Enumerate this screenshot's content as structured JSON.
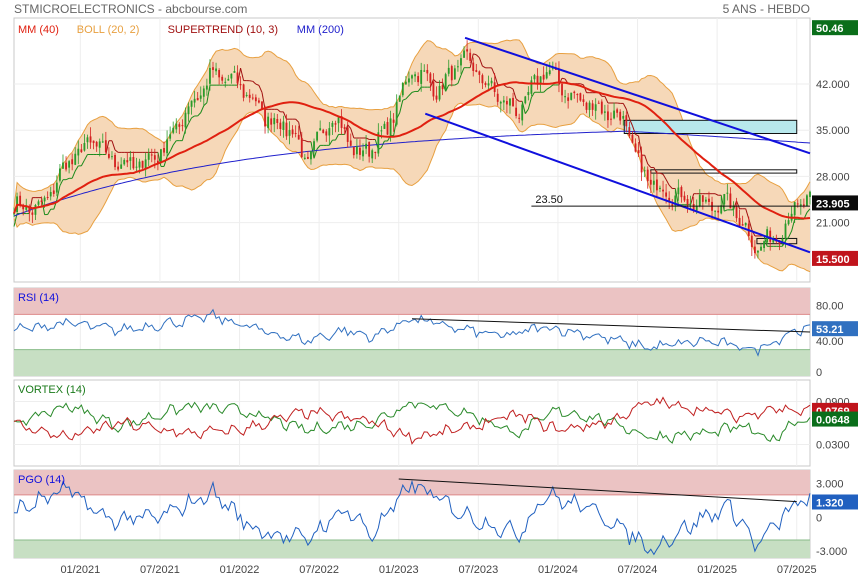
{
  "header": {
    "title": "STMICROELECTRONICS - abcbourse.com",
    "period": "5 ANS - HEBDO"
  },
  "colors": {
    "bull": "#2a9a2a",
    "bear": "#d42020",
    "mm40": "#e02010",
    "mm200": "#2020cc",
    "boll": "#e8a040",
    "bollFill": "#f6d8b8",
    "supertrend": "#1a8a1a",
    "supertrendDown": "#a01010",
    "channel": "#1010dd",
    "rsi": "#3070c0",
    "pgo": "#2060c0",
    "vortexPlus": "#2a8a2a",
    "vortexMinus": "#c02020",
    "zoneHigh": "#ebc3c3",
    "zoneLow": "#c7dfc3",
    "rectBlue": "#b8e8ec"
  },
  "chart_data": [
    {
      "type": "candlestick",
      "name": "price",
      "legend": [
        {
          "label": "MM (40)",
          "color": "#e02010"
        },
        {
          "label": "BOLL (20, 2)",
          "color": "#e8a040"
        },
        {
          "label": "SUPERTREND (10, 3)",
          "color": "#a01010"
        },
        {
          "label": "MM (200)",
          "color": "#2020cc"
        }
      ],
      "ylim": [
        12,
        52
      ],
      "yticks": [
        42.0,
        35.0,
        28.0,
        21.0
      ],
      "ytick_labels": [
        "42.000",
        "35.000",
        "28.000",
        "21.000"
      ],
      "x_tick_labels": [
        "01/2021",
        "07/2021",
        "01/2022",
        "07/2022",
        "01/2023",
        "07/2023",
        "01/2024",
        "07/2024",
        "01/2025",
        "07/2025"
      ],
      "x_start": "2020-08",
      "x_end": "2025-08",
      "close_anchors": [
        {
          "date": "2020-08",
          "value": 23.5
        },
        {
          "date": "2020-10",
          "value": 23.0
        },
        {
          "date": "2020-12",
          "value": 30.0
        },
        {
          "date": "2021-02",
          "value": 33.5
        },
        {
          "date": "2021-03",
          "value": 31.0
        },
        {
          "date": "2021-05",
          "value": 29.5
        },
        {
          "date": "2021-07",
          "value": 31.5
        },
        {
          "date": "2021-09",
          "value": 38.0
        },
        {
          "date": "2021-11",
          "value": 43.5
        },
        {
          "date": "2022-01",
          "value": 42.0
        },
        {
          "date": "2022-03",
          "value": 37.0
        },
        {
          "date": "2022-05",
          "value": 35.0
        },
        {
          "date": "2022-06",
          "value": 30.0
        },
        {
          "date": "2022-08",
          "value": 37.5
        },
        {
          "date": "2022-10",
          "value": 31.0
        },
        {
          "date": "2022-12",
          "value": 34.5
        },
        {
          "date": "2023-02",
          "value": 44.5
        },
        {
          "date": "2023-04",
          "value": 41.0
        },
        {
          "date": "2023-06",
          "value": 46.0
        },
        {
          "date": "2023-08",
          "value": 41.0
        },
        {
          "date": "2023-10",
          "value": 37.5
        },
        {
          "date": "2023-12",
          "value": 44.5
        },
        {
          "date": "2024-02",
          "value": 40.0
        },
        {
          "date": "2024-04",
          "value": 38.5
        },
        {
          "date": "2024-06",
          "value": 36.5
        },
        {
          "date": "2024-07",
          "value": 30.0
        },
        {
          "date": "2024-08",
          "value": 27.0
        },
        {
          "date": "2024-10",
          "value": 25.0
        },
        {
          "date": "2024-12",
          "value": 23.5
        },
        {
          "date": "2025-02",
          "value": 24.0
        },
        {
          "date": "2025-04",
          "value": 17.0
        },
        {
          "date": "2025-06",
          "value": 20.0
        },
        {
          "date": "2025-07",
          "value": 23.9
        }
      ],
      "channel_lines": [
        {
          "from": {
            "date": "2023-06",
            "value": 49.0
          },
          "to": {
            "date": "2025-08",
            "value": 31.5
          }
        },
        {
          "from": {
            "date": "2023-03",
            "value": 37.5
          },
          "to": {
            "date": "2025-08",
            "value": 16.5
          }
        }
      ],
      "zones": [
        {
          "from": "2024-06",
          "to": "2025-07",
          "low": 34.5,
          "high": 36.5,
          "fill": "#b8e8ec"
        },
        {
          "from": "2024-08",
          "to": "2025-07",
          "low": 28.5,
          "high": 29.0,
          "fill": "none"
        },
        {
          "from": "2025-04",
          "to": "2025-07",
          "low": 17.8,
          "high": 18.6,
          "fill": "none"
        }
      ],
      "level_label": {
        "text": "23.50",
        "value": 23.5,
        "from": "2023-11",
        "to": "2025-08"
      },
      "price_badges": [
        {
          "text": "50.46",
          "value": 50.46,
          "color": "#0a6e1a"
        },
        {
          "text": "23.905",
          "value": 23.905,
          "color": "#0a0a0a"
        },
        {
          "text": "15.500",
          "value": 15.5,
          "color": "#c0141c"
        }
      ]
    },
    {
      "type": "line",
      "name": "RSI (14)",
      "ylim": [
        0,
        100
      ],
      "yticks": [
        80,
        40,
        0
      ],
      "ytick_labels": [
        "80.00",
        "40.00",
        "0"
      ],
      "zones": [
        {
          "low": 70,
          "high": 100,
          "kind": "high"
        },
        {
          "low": 0,
          "high": 30,
          "kind": "low"
        }
      ],
      "trend_line": {
        "from": {
          "date": "2023-02",
          "value": 65
        },
        "to": {
          "date": "2025-08",
          "value": 50
        }
      },
      "anchors": [
        {
          "date": "2020-08",
          "value": 52
        },
        {
          "date": "2020-12",
          "value": 60
        },
        {
          "date": "2021-04",
          "value": 52
        },
        {
          "date": "2021-09",
          "value": 63
        },
        {
          "date": "2021-11",
          "value": 68
        },
        {
          "date": "2022-03",
          "value": 50
        },
        {
          "date": "2022-06",
          "value": 40
        },
        {
          "date": "2022-09",
          "value": 52
        },
        {
          "date": "2022-11",
          "value": 44
        },
        {
          "date": "2023-02",
          "value": 66
        },
        {
          "date": "2023-05",
          "value": 55
        },
        {
          "date": "2023-09",
          "value": 45
        },
        {
          "date": "2023-12",
          "value": 56
        },
        {
          "date": "2024-04",
          "value": 45
        },
        {
          "date": "2024-08",
          "value": 32
        },
        {
          "date": "2024-12",
          "value": 40
        },
        {
          "date": "2025-04",
          "value": 30
        },
        {
          "date": "2025-07",
          "value": 53
        }
      ],
      "badge": {
        "text": "53.21",
        "value": 53.21,
        "color": "#3070c0"
      }
    },
    {
      "type": "line",
      "name": "VORTEX (14)",
      "ytick_labels": [
        "0.0900",
        "0.0769",
        "0.0648",
        "0.0300"
      ],
      "yticks": [
        0.09,
        0.03
      ],
      "ylim": [
        0.0,
        0.12
      ],
      "series": [
        {
          "name": "VI+",
          "color": "#2a8a2a",
          "anchors": [
            {
              "date": "2020-08",
              "value": 0.058
            },
            {
              "date": "2020-12",
              "value": 0.085
            },
            {
              "date": "2021-04",
              "value": 0.055
            },
            {
              "date": "2021-09",
              "value": 0.083
            },
            {
              "date": "2022-01",
              "value": 0.078
            },
            {
              "date": "2022-06",
              "value": 0.05
            },
            {
              "date": "2022-11",
              "value": 0.06
            },
            {
              "date": "2023-02",
              "value": 0.09
            },
            {
              "date": "2023-06",
              "value": 0.075
            },
            {
              "date": "2023-10",
              "value": 0.045
            },
            {
              "date": "2024-01",
              "value": 0.078
            },
            {
              "date": "2024-05",
              "value": 0.062
            },
            {
              "date": "2024-08",
              "value": 0.04
            },
            {
              "date": "2024-12",
              "value": 0.045
            },
            {
              "date": "2025-03",
              "value": 0.055
            },
            {
              "date": "2025-05",
              "value": 0.035
            },
            {
              "date": "2025-07",
              "value": 0.0648
            }
          ]
        },
        {
          "name": "VI-",
          "color": "#c02020",
          "anchors": [
            {
              "date": "2020-08",
              "value": 0.058
            },
            {
              "date": "2020-12",
              "value": 0.04
            },
            {
              "date": "2021-04",
              "value": 0.06
            },
            {
              "date": "2021-09",
              "value": 0.045
            },
            {
              "date": "2022-01",
              "value": 0.05
            },
            {
              "date": "2022-06",
              "value": 0.075
            },
            {
              "date": "2022-11",
              "value": 0.062
            },
            {
              "date": "2023-02",
              "value": 0.04
            },
            {
              "date": "2023-06",
              "value": 0.052
            },
            {
              "date": "2023-10",
              "value": 0.072
            },
            {
              "date": "2024-01",
              "value": 0.05
            },
            {
              "date": "2024-05",
              "value": 0.062
            },
            {
              "date": "2024-08",
              "value": 0.09
            },
            {
              "date": "2024-12",
              "value": 0.078
            },
            {
              "date": "2025-03",
              "value": 0.068
            },
            {
              "date": "2025-05",
              "value": 0.082
            },
            {
              "date": "2025-07",
              "value": 0.0769
            }
          ]
        }
      ],
      "badges": [
        {
          "text": "0.0769",
          "value": 0.0769,
          "color": "#c0141c"
        },
        {
          "text": "0.0648",
          "value": 0.0648,
          "color": "#0a6e1a"
        }
      ]
    },
    {
      "type": "line",
      "name": "PGO (14)",
      "ylim": [
        -3.6,
        4.2
      ],
      "yticks": [
        3.0,
        0,
        -3.0
      ],
      "ytick_labels": [
        "3.000",
        "0",
        "-3.000"
      ],
      "zones": [
        {
          "low": 2.0,
          "high": 4.2,
          "kind": "high"
        },
        {
          "low": -3.6,
          "high": -2.0,
          "kind": "low"
        }
      ],
      "trend_line": {
        "from": {
          "date": "2023-01",
          "value": 3.4
        },
        "to": {
          "date": "2025-07",
          "value": 1.4
        }
      },
      "anchors": [
        {
          "date": "2020-08",
          "value": 0.5
        },
        {
          "date": "2020-12",
          "value": 2.5
        },
        {
          "date": "2021-03",
          "value": -0.2
        },
        {
          "date": "2021-07",
          "value": 0.0
        },
        {
          "date": "2021-11",
          "value": 2.2
        },
        {
          "date": "2022-02",
          "value": -1.0
        },
        {
          "date": "2022-06",
          "value": -2.0
        },
        {
          "date": "2022-09",
          "value": 0.8
        },
        {
          "date": "2022-11",
          "value": -1.5
        },
        {
          "date": "2023-02",
          "value": 3.0
        },
        {
          "date": "2023-06",
          "value": 0.2
        },
        {
          "date": "2023-10",
          "value": -1.5
        },
        {
          "date": "2023-12",
          "value": 2.0
        },
        {
          "date": "2024-04",
          "value": 0.5
        },
        {
          "date": "2024-08",
          "value": -2.8
        },
        {
          "date": "2024-12",
          "value": 0.0
        },
        {
          "date": "2025-02",
          "value": 1.0
        },
        {
          "date": "2025-04",
          "value": -2.5
        },
        {
          "date": "2025-07",
          "value": 1.32
        }
      ],
      "badge": {
        "text": "1.320",
        "value": 1.32,
        "color": "#2060c0"
      }
    }
  ]
}
